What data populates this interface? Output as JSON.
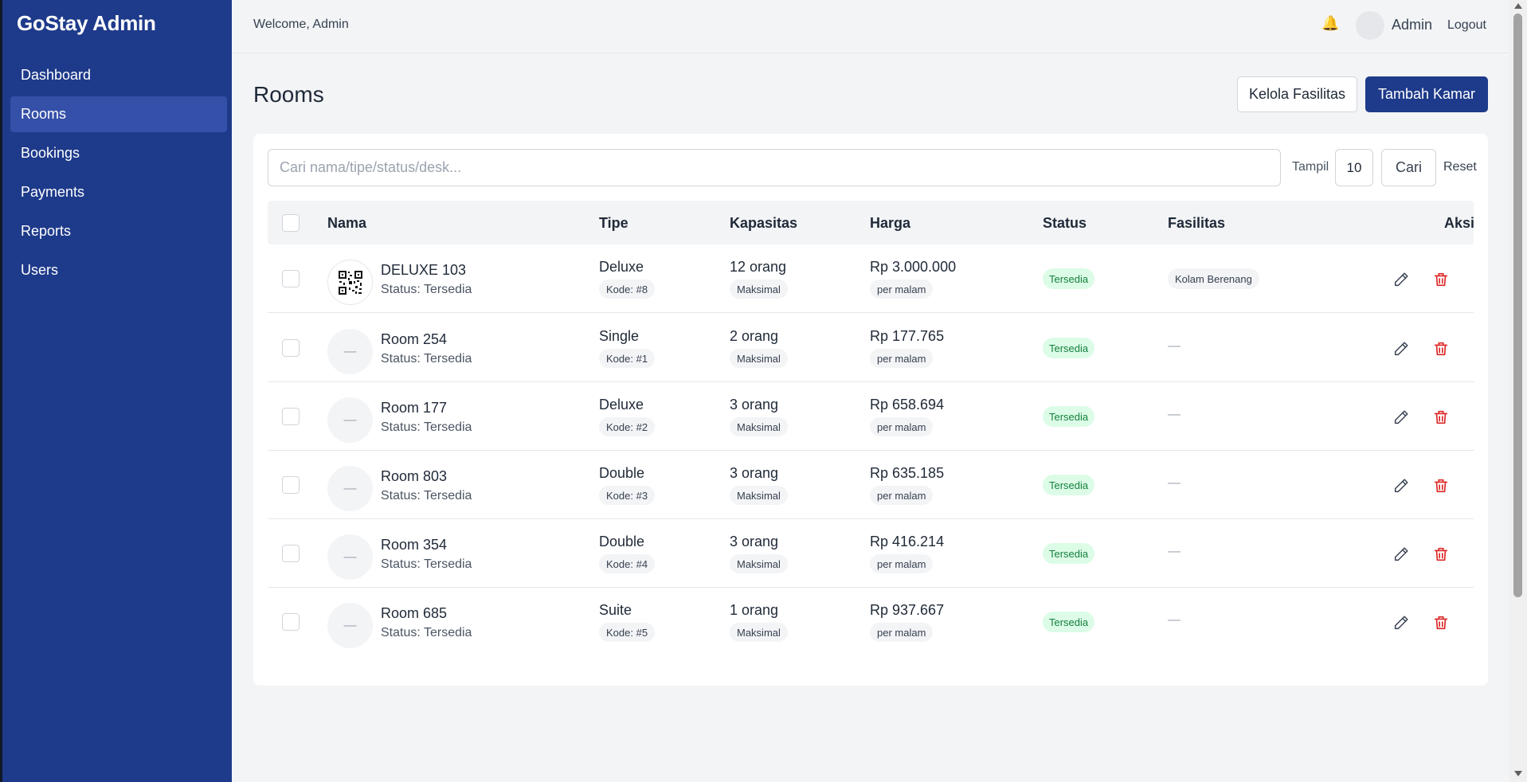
{
  "app": {
    "brand": "GoStay Admin"
  },
  "sidebar": {
    "items": [
      {
        "label": "Dashboard"
      },
      {
        "label": "Rooms"
      },
      {
        "label": "Bookings"
      },
      {
        "label": "Payments"
      },
      {
        "label": "Reports"
      },
      {
        "label": "Users"
      }
    ],
    "active": "Rooms"
  },
  "topbar": {
    "welcome": "Welcome, Admin",
    "user": "Admin",
    "logout": "Logout",
    "bell_icon": "bell-icon"
  },
  "page": {
    "title": "Rooms",
    "manage_facilities_label": "Kelola Fasilitas",
    "add_room_label": "Tambah Kamar"
  },
  "filters": {
    "search_placeholder": "Cari nama/tipe/status/desk...",
    "search_value": "",
    "show_label": "Tampil",
    "page_size": "10",
    "search_button": "Cari",
    "reset_button": "Reset"
  },
  "table": {
    "headers": [
      "Nama",
      "Tipe",
      "Kapasitas",
      "Harga",
      "Status",
      "Fasilitas",
      "Aksi"
    ],
    "rows": [
      {
        "name": "DELUXE 103",
        "status_line": "Status: Tersedia",
        "type": "Deluxe",
        "code": "Kode: #8",
        "capacity": "12 orang",
        "capacity_note": "Maksimal",
        "price": "Rp 3.000.000",
        "price_note": "per malam",
        "status": "Tersedia",
        "facilities": "Kolam Berenang",
        "thumb": "qr"
      },
      {
        "name": "Room 254",
        "status_line": "Status: Tersedia",
        "type": "Single",
        "code": "Kode: #1",
        "capacity": "2 orang",
        "capacity_note": "Maksimal",
        "price": "Rp 177.765",
        "price_note": "per malam",
        "status": "Tersedia",
        "facilities": "—",
        "thumb": "—"
      },
      {
        "name": "Room 177",
        "status_line": "Status: Tersedia",
        "type": "Deluxe",
        "code": "Kode: #2",
        "capacity": "3 orang",
        "capacity_note": "Maksimal",
        "price": "Rp 658.694",
        "price_note": "per malam",
        "status": "Tersedia",
        "facilities": "—",
        "thumb": "—"
      },
      {
        "name": "Room 803",
        "status_line": "Status: Tersedia",
        "type": "Double",
        "code": "Kode: #3",
        "capacity": "3 orang",
        "capacity_note": "Maksimal",
        "price": "Rp 635.185",
        "price_note": "per malam",
        "status": "Tersedia",
        "facilities": "—",
        "thumb": "—"
      },
      {
        "name": "Room 354",
        "status_line": "Status: Tersedia",
        "type": "Double",
        "code": "Kode: #4",
        "capacity": "3 orang",
        "capacity_note": "Maksimal",
        "price": "Rp 416.214",
        "price_note": "per malam",
        "status": "Tersedia",
        "facilities": "—",
        "thumb": "—"
      },
      {
        "name": "Room 685",
        "status_line": "Status: Tersedia",
        "type": "Suite",
        "code": "Kode: #5",
        "capacity": "1 orang",
        "capacity_note": "Maksimal",
        "price": "Rp 937.667",
        "price_note": "per malam",
        "status": "Tersedia",
        "facilities": "—",
        "thumb": "—"
      }
    ]
  },
  "colors": {
    "primary": "#1e3a8a",
    "status_green_bg": "#dcfce7",
    "status_green_text": "#15803d",
    "danger": "#dc2626"
  }
}
